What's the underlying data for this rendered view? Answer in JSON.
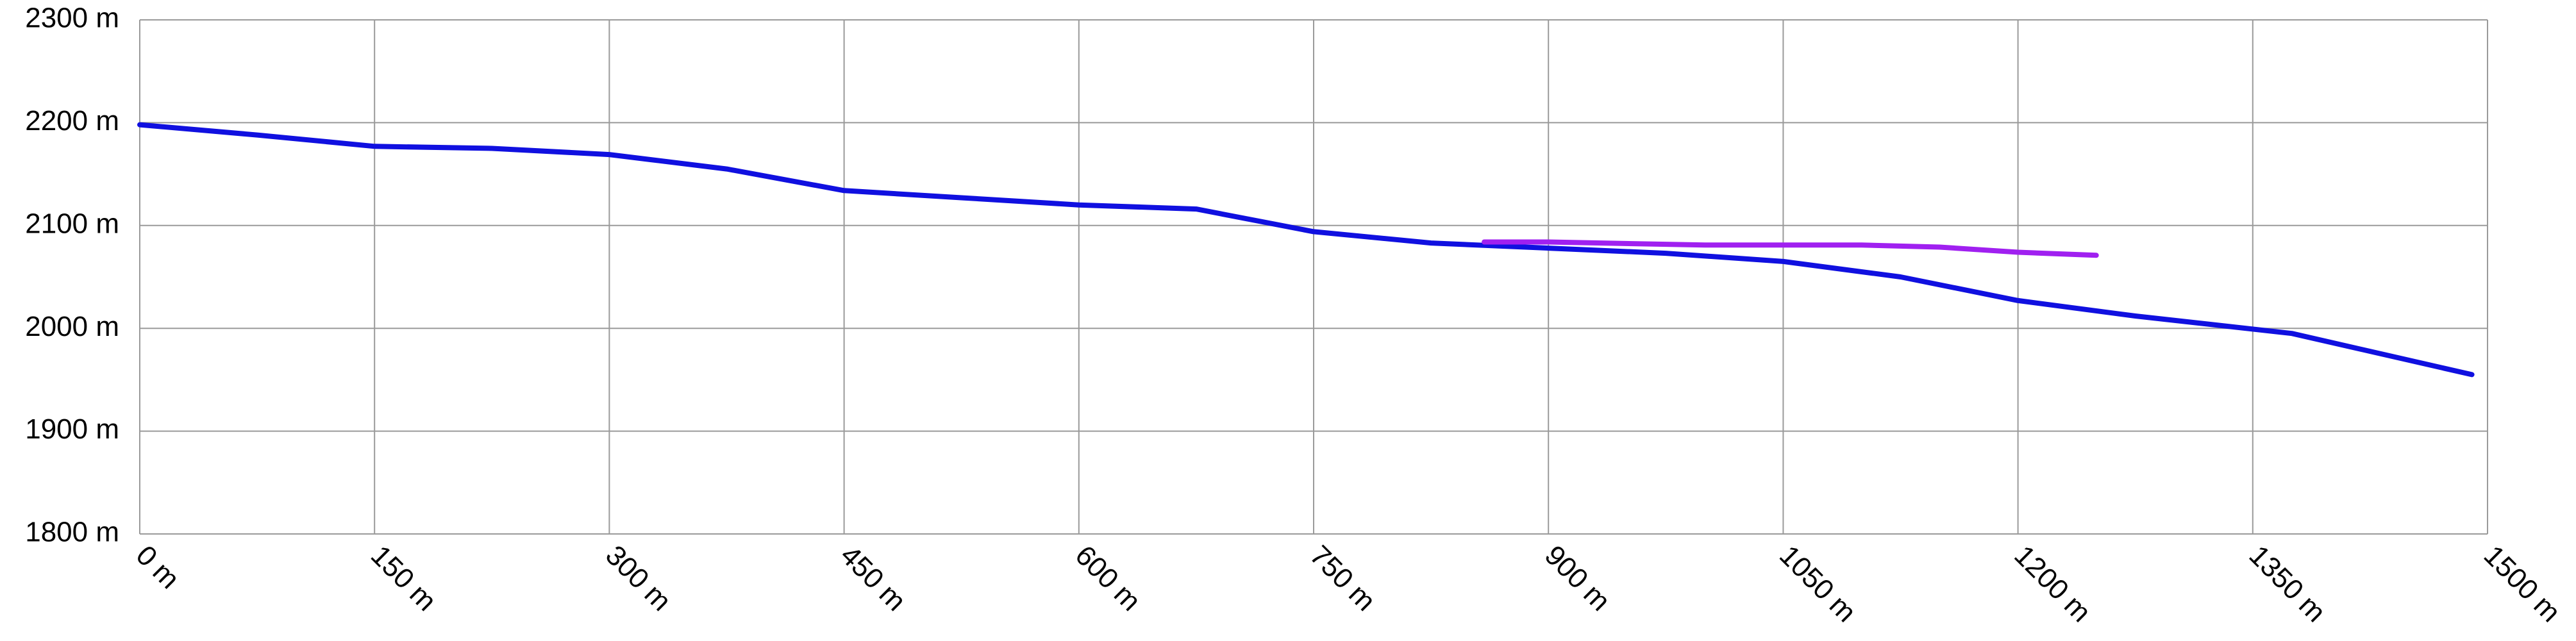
{
  "chart_data": {
    "type": "line",
    "series": [
      {
        "color": "#1010e0",
        "x": [
          0,
          75,
          150,
          225,
          300,
          375,
          450,
          525,
          600,
          675,
          750,
          825,
          900,
          975,
          1050,
          1125,
          1200,
          1275,
          1375,
          1490
        ],
        "values": [
          2198,
          2188,
          2177,
          2175,
          2169,
          2155,
          2134,
          2127,
          2120,
          2116,
          2094,
          2083,
          2078,
          2073,
          2065,
          2050,
          2027,
          2012,
          1995,
          1955
        ]
      },
      {
        "color": "#a020f0",
        "x": [
          859,
          900,
          1000,
          1100,
          1150,
          1200,
          1250
        ],
        "values": [
          2084,
          2084,
          2081,
          2081,
          2079,
          2074,
          2071
        ]
      }
    ],
    "xlim": [
      0,
      1500
    ],
    "xticks": [
      {
        "value": 0,
        "label": "0 m"
      },
      {
        "value": 150,
        "label": "150 m"
      },
      {
        "value": 300,
        "label": "300 m"
      },
      {
        "value": 450,
        "label": "450 m"
      },
      {
        "value": 600,
        "label": "600 m"
      },
      {
        "value": 750,
        "label": "750 m"
      },
      {
        "value": 900,
        "label": "900 m"
      },
      {
        "value": 1050,
        "label": "1050 m"
      },
      {
        "value": 1200,
        "label": "1200 m"
      },
      {
        "value": 1350,
        "label": "1350 m"
      },
      {
        "value": 1500,
        "label": "1500 m"
      }
    ],
    "ylim": [
      1800,
      2300
    ],
    "yticks": [
      {
        "value": 1800,
        "label": "1800 m"
      },
      {
        "value": 1900,
        "label": "1900 m"
      },
      {
        "value": 2000,
        "label": "2000 m"
      },
      {
        "value": 2100,
        "label": "2100 m"
      },
      {
        "value": 2200,
        "label": "2200 m"
      },
      {
        "value": 2300,
        "label": "2300 m"
      }
    ],
    "grid": true
  }
}
